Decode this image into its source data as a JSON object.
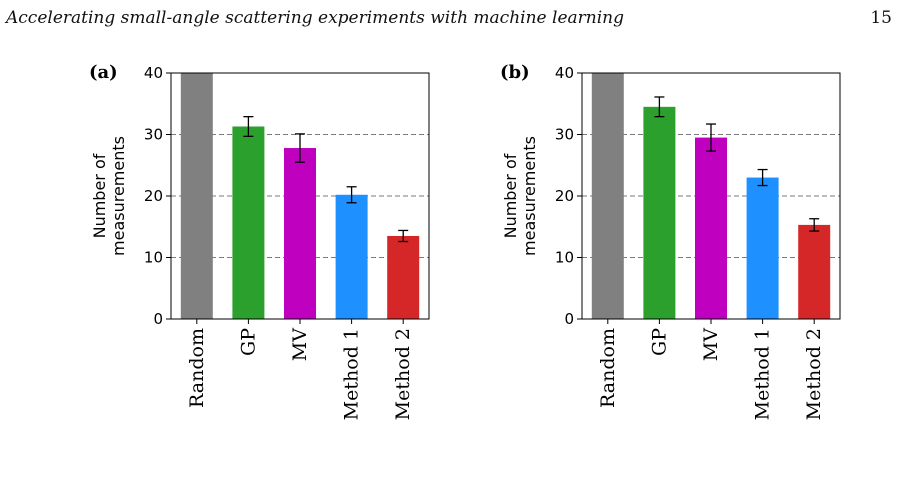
{
  "header": {
    "running_title": "Accelerating small-angle scattering experiments with machine learning",
    "page_number": "15"
  },
  "chart_data": [
    {
      "type": "bar",
      "panel_label": "(a)",
      "categories": [
        "Random",
        "GP",
        "MV",
        "Method 1",
        "Method 2"
      ],
      "values": [
        40,
        31.3,
        27.8,
        20.2,
        13.5
      ],
      "errors": [
        0,
        1.6,
        2.3,
        1.3,
        0.9
      ],
      "colors": [
        "#808080",
        "#2ca02c",
        "#bf00bf",
        "#1e90ff",
        "#d62728"
      ],
      "ylabel": [
        "Number of",
        "measurements"
      ],
      "ylim": [
        0,
        40
      ],
      "yticks": [
        0,
        10,
        20,
        30,
        40
      ],
      "grid": "horizontal dashed"
    },
    {
      "type": "bar",
      "panel_label": "(b)",
      "categories": [
        "Random",
        "GP",
        "MV",
        "Method 1",
        "Method 2"
      ],
      "values": [
        40,
        34.5,
        29.5,
        23,
        15.3
      ],
      "errors": [
        0,
        1.6,
        2.2,
        1.3,
        1.0
      ],
      "colors": [
        "#808080",
        "#2ca02c",
        "#bf00bf",
        "#1e90ff",
        "#d62728"
      ],
      "ylabel": [
        "Number of",
        "measurements"
      ],
      "ylim": [
        0,
        40
      ],
      "yticks": [
        0,
        10,
        20,
        30,
        40
      ],
      "grid": "horizontal dashed"
    }
  ]
}
